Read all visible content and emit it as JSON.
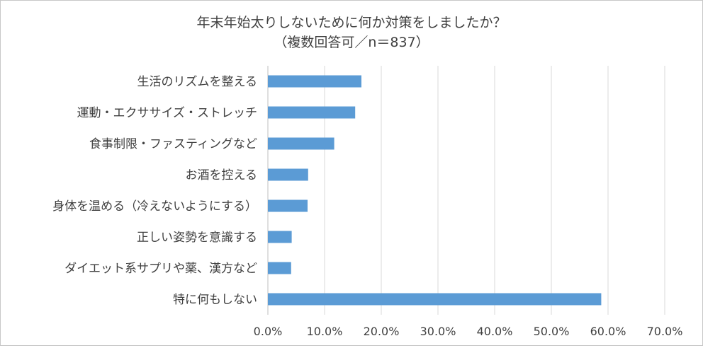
{
  "chart_data": {
    "type": "bar",
    "orientation": "horizontal",
    "title_lines": [
      "年末年始太りしないために何か対策をしましたか？",
      "（複数回答可／n＝837）"
    ],
    "categories": [
      "生活のリズムを整える",
      "運動・エクササイズ・ストレッチ",
      "食事制限・ファスティングなど",
      "お酒を控える",
      "身体を温める（冷えないようにする）",
      "正しい姿勢を意識する",
      "ダイエット系サプリや薬、漢方など",
      "特に何もしない"
    ],
    "values": [
      16.5,
      15.4,
      11.7,
      7.1,
      7.0,
      4.2,
      4.1,
      58.8
    ],
    "xlim": [
      0,
      70
    ],
    "xticks": [
      "0.0%",
      "10.0%",
      "20.0%",
      "30.0%",
      "40.0%",
      "50.0%",
      "60.0%",
      "70.0%"
    ],
    "grid": true,
    "bar_color": "#5b9bd5",
    "grid_color": "#d9d9d9",
    "text_color": "#404040"
  }
}
